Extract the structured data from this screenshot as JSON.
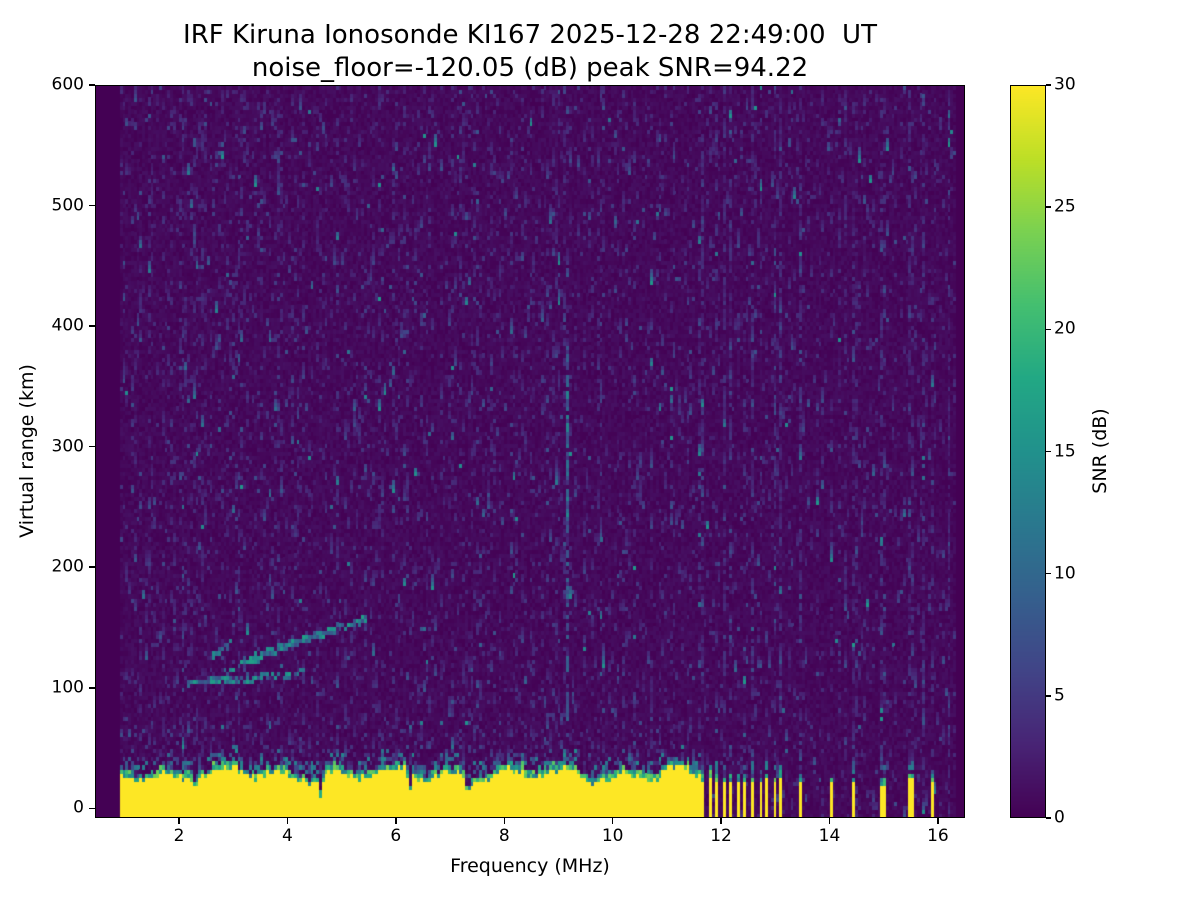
{
  "chart_data": {
    "type": "heatmap",
    "title_line1": "IRF Kiruna Ionosonde KI167 2025-12-28 22:49:00  UT",
    "title_line2": "noise_floor=-120.05 (dB) peak SNR=94.22",
    "station": "IRF Kiruna Ionosonde KI167",
    "timestamp_ut": "2025-12-28 22:49:00",
    "noise_floor_db": -120.05,
    "peak_snr_db": 94.22,
    "xlabel": "Frequency (MHz)",
    "ylabel": "Virtual range (km)",
    "xlim": [
      0.45,
      16.5
    ],
    "ylim": [
      -8,
      600
    ],
    "xticks": [
      2,
      4,
      6,
      8,
      10,
      12,
      14,
      16
    ],
    "yticks": [
      0,
      100,
      200,
      300,
      400,
      500,
      600
    ],
    "grid": false,
    "colorbar": {
      "label": "SNR (dB)",
      "min": 0,
      "max": 30,
      "ticks": [
        0,
        5,
        10,
        15,
        20,
        25,
        30
      ],
      "colormap": "viridis",
      "position": "right"
    },
    "colormap_stops": [
      [
        0.0,
        "#440154"
      ],
      [
        0.1,
        "#482475"
      ],
      [
        0.2,
        "#414487"
      ],
      [
        0.3,
        "#355f8d"
      ],
      [
        0.4,
        "#2a788e"
      ],
      [
        0.5,
        "#21918c"
      ],
      [
        0.6,
        "#22a884"
      ],
      [
        0.7,
        "#44bf70"
      ],
      [
        0.8,
        "#7ad151"
      ],
      [
        0.9,
        "#bddf26"
      ],
      [
        1.0,
        "#fde725"
      ]
    ],
    "features": {
      "data_freq_range": [
        0.9,
        16.32
      ],
      "background_noise": {
        "base_db_max": 1.5,
        "speckle_db_range": [
          2,
          16
        ]
      },
      "ground_clutter": {
        "freq_range": [
          0.9,
          11.63
        ],
        "top_km_base": 28,
        "top_km_jitter": 9,
        "snr_db": 30,
        "notches": [
          {
            "freq": 2.32,
            "width": 0.08,
            "top_km": 18
          },
          {
            "freq": 4.62,
            "width": 0.09,
            "top_km": 10
          },
          {
            "freq": 6.28,
            "width": 0.08,
            "top_km": 12
          },
          {
            "freq": 7.33,
            "width": 0.08,
            "top_km": 14
          }
        ]
      },
      "interference_stripes": {
        "freq_range": [
          11.63,
          13.13
        ],
        "period_mhz": 0.1335,
        "duty": 0.42,
        "top_km": 24
      },
      "isolated_interference_columns": [
        {
          "freq": 13.48,
          "width_mhz": 0.08,
          "top_km": 24
        },
        {
          "freq": 14.03,
          "width_mhz": 0.06,
          "top_km": 20
        },
        {
          "freq": 14.45,
          "width_mhz": 0.09,
          "top_km": 22
        },
        {
          "freq": 15.0,
          "width_mhz": 0.06,
          "top_km": 18
        },
        {
          "freq": 15.53,
          "width_mhz": 0.08,
          "top_km": 23
        },
        {
          "freq": 15.9,
          "width_mhz": 0.06,
          "top_km": 20
        }
      ],
      "echo_traces": [
        {
          "f0": 2.15,
          "r0": 104,
          "f1": 3.1,
          "r1": 107
        },
        {
          "f0": 3.1,
          "r0": 107,
          "f1": 4.35,
          "r1": 113
        },
        {
          "f0": 2.8,
          "r0": 112,
          "f1": 3.6,
          "r1": 126
        },
        {
          "f0": 3.15,
          "r0": 122,
          "f1": 4.2,
          "r1": 138
        },
        {
          "f0": 3.6,
          "r0": 130,
          "f1": 4.9,
          "r1": 148
        },
        {
          "f0": 4.3,
          "r0": 140,
          "f1": 5.45,
          "r1": 157
        },
        {
          "f0": 2.6,
          "r0": 125,
          "f1": 3.0,
          "r1": 138
        }
      ],
      "vertical_interference_line": {
        "freq": 9.18,
        "range_km": [
          60,
          385
        ],
        "bright_range_km": [
          240,
          365
        ]
      },
      "faint_diagonal_streak": {
        "f0": 3.5,
        "r0": 600,
        "f1": 4.15,
        "r1": 115
      }
    }
  }
}
